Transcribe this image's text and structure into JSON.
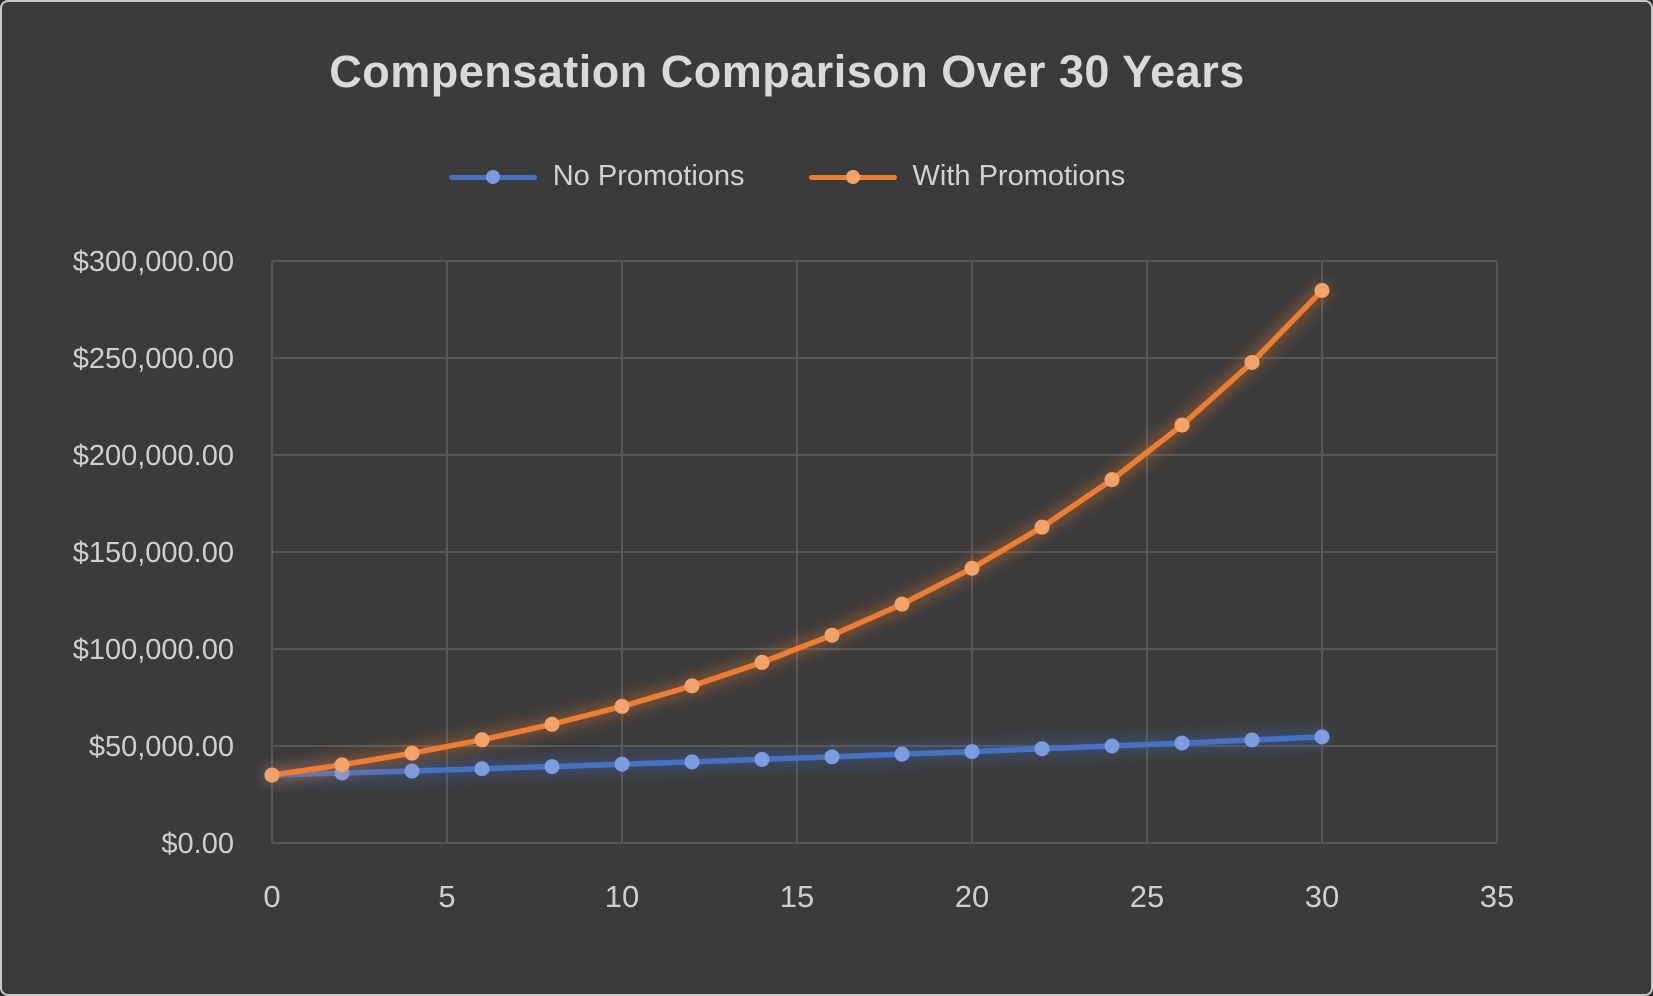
{
  "chart_data": {
    "type": "line",
    "title": "Compensation Comparison Over 30 Years",
    "xlabel": "",
    "ylabel": "",
    "x": [
      0,
      2,
      4,
      6,
      8,
      10,
      12,
      14,
      16,
      18,
      20,
      22,
      24,
      26,
      28,
      30
    ],
    "series": [
      {
        "name": "No Promotions",
        "color": "#4472c4",
        "marker_color": "#7d9be0",
        "values": [
          35000,
          36100,
          37100,
          38300,
          39400,
          40600,
          41800,
          43100,
          44400,
          45800,
          47100,
          48600,
          50000,
          51500,
          53100,
          54700
        ]
      },
      {
        "name": "With Promotions",
        "color": "#ed7d31",
        "marker_color": "#f4a269",
        "values": [
          35000,
          40300,
          46300,
          53200,
          61200,
          70400,
          81000,
          93100,
          107100,
          123100,
          141600,
          162800,
          187300,
          215400,
          247700,
          284800
        ]
      }
    ],
    "xlim": [
      0,
      35
    ],
    "ylim": [
      0,
      300000
    ],
    "x_ticks": [
      0,
      5,
      10,
      15,
      20,
      25,
      30,
      35
    ],
    "x_tick_labels": [
      "0",
      "5",
      "10",
      "15",
      "20",
      "25",
      "30",
      "35"
    ],
    "y_ticks": [
      0,
      50000,
      100000,
      150000,
      200000,
      250000,
      300000
    ],
    "y_tick_labels": [
      "$0.00",
      "$50,000.00",
      "$100,000.00",
      "$150,000.00",
      "$200,000.00",
      "$250,000.00",
      "$300,000.00"
    ],
    "grid": true,
    "legend_position": "top"
  },
  "style": {
    "background_color": "#3b3b3b",
    "border_color": "#c9c9c9",
    "grid_color": "#575757",
    "tick_text_color": "#cfcfcf",
    "title_color": "#d9d9d9"
  }
}
